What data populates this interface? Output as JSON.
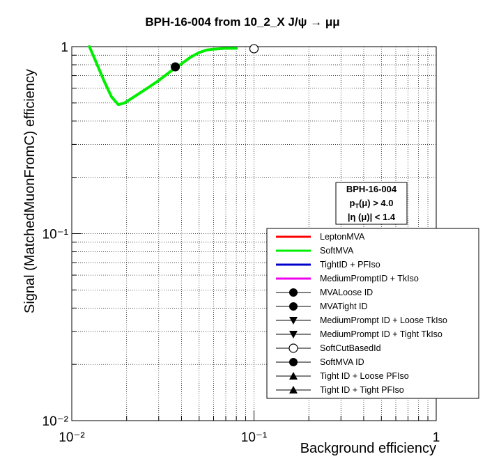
{
  "chart_data": {
    "type": "line",
    "title": "BPH-16-004 from 10_2_X J/ψ  →  μμ",
    "xlabel": "Background efficiency",
    "ylabel": "Signal (MatchedMuonFromC) efficiency",
    "xscale": "log",
    "yscale": "log",
    "xlim": [
      0.01,
      1
    ],
    "ylim": [
      0.01,
      1
    ],
    "grid": true,
    "x_ticklabels": [
      "10⁻²",
      "10⁻¹",
      "1"
    ],
    "y_ticklabels": [
      "10⁻²",
      "10⁻¹",
      "1"
    ],
    "series": [
      {
        "name": "SoftMVA",
        "color": "#00ee00",
        "x": [
          0.0125,
          0.0135,
          0.015,
          0.0165,
          0.018,
          0.0195,
          0.022,
          0.026,
          0.03,
          0.035,
          0.04,
          0.045,
          0.05,
          0.055,
          0.06,
          0.07,
          0.08
        ],
        "y": [
          1.0,
          0.84,
          0.66,
          0.54,
          0.49,
          0.5,
          0.54,
          0.6,
          0.66,
          0.74,
          0.81,
          0.88,
          0.93,
          0.96,
          0.97,
          0.98,
          0.98
        ]
      }
    ],
    "markers": [
      {
        "name": "SoftMVA ID",
        "x": 0.037,
        "y": 0.78,
        "style": "filled-circle"
      },
      {
        "name": "SoftCutBasedId",
        "x": 0.1,
        "y": 0.975,
        "style": "open-circle"
      }
    ],
    "annotation": {
      "line1": "BPH-16-004",
      "line2": "p",
      "line2_sub": "T",
      "line2_rest": "(μ) > 4.0",
      "line3": "|η (μ)| < 1.4"
    },
    "legend_position": "bottom-right",
    "legend": [
      {
        "label": "LeptonMVA",
        "symbol": "line",
        "color": "#ff0000"
      },
      {
        "label": "SoftMVA",
        "symbol": "line",
        "color": "#00ee00"
      },
      {
        "label": "TightID + PFIso",
        "symbol": "line",
        "color": "#0000cc"
      },
      {
        "label": "MediumPromptID + TkIso",
        "symbol": "line",
        "color": "#ee00ee"
      },
      {
        "label": "MVALoose ID",
        "symbol": "filled-circle",
        "color": "#000000"
      },
      {
        "label": "MVATight ID",
        "symbol": "filled-circle",
        "color": "#000000"
      },
      {
        "label": "MediumPrompt ID + Loose TkIso",
        "symbol": "down-triangle",
        "color": "#000000"
      },
      {
        "label": "MediumPrompt ID + Tight TkIso",
        "symbol": "down-triangle",
        "color": "#000000"
      },
      {
        "label": "SoftCutBasedId",
        "symbol": "open-circle",
        "color": "#000000"
      },
      {
        "label": "SoftMVA ID",
        "symbol": "filled-circle",
        "color": "#000000"
      },
      {
        "label": "Tight ID + Loose PFIso",
        "symbol": "up-triangle",
        "color": "#000000"
      },
      {
        "label": "Tight ID + Tight PFIso",
        "symbol": "up-triangle",
        "color": "#000000"
      }
    ]
  }
}
